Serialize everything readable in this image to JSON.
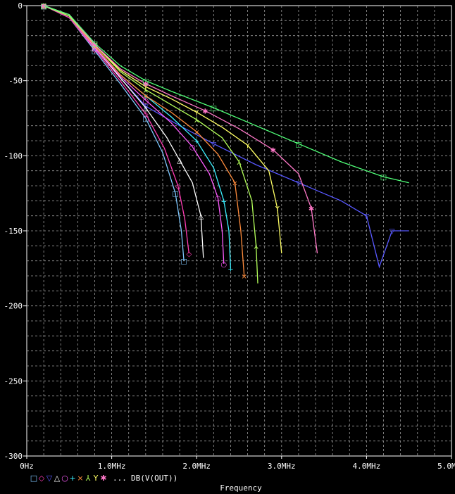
{
  "chart_data": {
    "type": "line",
    "xlabel": "Frequency",
    "x_unit": "Hz",
    "xlim": [
      0,
      5000000
    ],
    "ylim": [
      -300,
      0
    ],
    "x_ticks": [
      {
        "value": 0,
        "label": "0Hz"
      },
      {
        "value": 1000000,
        "label": "1.0MHz"
      },
      {
        "value": 2000000,
        "label": "2.0MHz"
      },
      {
        "value": 3000000,
        "label": "3.0MHz"
      },
      {
        "value": 4000000,
        "label": "4.0MHz"
      },
      {
        "value": 5000000,
        "label": "5.0MHz"
      }
    ],
    "y_ticks": [
      {
        "value": 0,
        "label": "0"
      },
      {
        "value": -50,
        "label": "-50"
      },
      {
        "value": -100,
        "label": "-100"
      },
      {
        "value": -150,
        "label": "-150"
      },
      {
        "value": -200,
        "label": "-200"
      },
      {
        "value": -250,
        "label": "-250"
      },
      {
        "value": -300,
        "label": "-300"
      }
    ],
    "grid": true,
    "legend_position": "bottom-left",
    "legend_ellipsis": "...",
    "legend_label": "DB(V(OUT))",
    "series": [
      {
        "marker": "□",
        "color": "#7fc8ff",
        "points": [
          [
            200000,
            0
          ],
          [
            500000,
            -8
          ],
          [
            800000,
            -30
          ],
          [
            1100000,
            -52
          ],
          [
            1400000,
            -75
          ],
          [
            1600000,
            -98
          ],
          [
            1750000,
            -125
          ],
          [
            1820000,
            -150
          ],
          [
            1850000,
            -170
          ]
        ]
      },
      {
        "marker": "◇",
        "color": "#ff3cb4",
        "points": [
          [
            200000,
            0
          ],
          [
            500000,
            -8
          ],
          [
            800000,
            -29
          ],
          [
            1100000,
            -50
          ],
          [
            1400000,
            -72
          ],
          [
            1620000,
            -95
          ],
          [
            1780000,
            -120
          ],
          [
            1860000,
            -142
          ],
          [
            1910000,
            -165
          ]
        ]
      },
      {
        "marker": "▽",
        "color": "#5858ff",
        "points": [
          [
            200000,
            0
          ],
          [
            500000,
            -7
          ],
          [
            800000,
            -28
          ],
          [
            1100000,
            -48
          ],
          [
            1400000,
            -67
          ],
          [
            1800000,
            -80
          ],
          [
            2200000,
            -92
          ],
          [
            2700000,
            -106
          ],
          [
            3200000,
            -118
          ],
          [
            3700000,
            -130
          ],
          [
            4000000,
            -140
          ],
          [
            4150000,
            -174
          ],
          [
            4300000,
            -150
          ],
          [
            4500000,
            -150
          ]
        ]
      },
      {
        "marker": "△",
        "color": "#ffffff",
        "points": [
          [
            200000,
            0
          ],
          [
            500000,
            -7
          ],
          [
            800000,
            -28
          ],
          [
            1100000,
            -48
          ],
          [
            1400000,
            -68
          ],
          [
            1650000,
            -88
          ],
          [
            1800000,
            -103
          ],
          [
            1950000,
            -118
          ],
          [
            2050000,
            -140
          ],
          [
            2080000,
            -168
          ]
        ]
      },
      {
        "marker": "○",
        "color": "#ff5cff",
        "points": [
          [
            200000,
            0
          ],
          [
            500000,
            -7
          ],
          [
            800000,
            -28
          ],
          [
            1100000,
            -47
          ],
          [
            1400000,
            -63
          ],
          [
            1700000,
            -78
          ],
          [
            1950000,
            -94
          ],
          [
            2150000,
            -112
          ],
          [
            2250000,
            -128
          ],
          [
            2300000,
            -150
          ],
          [
            2320000,
            -172
          ]
        ]
      },
      {
        "marker": "+",
        "color": "#3cf0ff",
        "points": [
          [
            200000,
            0
          ],
          [
            500000,
            -7
          ],
          [
            800000,
            -27
          ],
          [
            1100000,
            -46
          ],
          [
            1400000,
            -60
          ],
          [
            1700000,
            -74
          ],
          [
            2000000,
            -90
          ],
          [
            2200000,
            -108
          ],
          [
            2320000,
            -130
          ],
          [
            2380000,
            -150
          ],
          [
            2400000,
            -175
          ]
        ]
      },
      {
        "marker": "×",
        "color": "#ff8c3c",
        "points": [
          [
            200000,
            0
          ],
          [
            500000,
            -7
          ],
          [
            800000,
            -27
          ],
          [
            1100000,
            -46
          ],
          [
            1400000,
            -60
          ],
          [
            1700000,
            -71
          ],
          [
            2000000,
            -84
          ],
          [
            2250000,
            -99
          ],
          [
            2450000,
            -118
          ],
          [
            2520000,
            -150
          ],
          [
            2560000,
            -180
          ]
        ]
      },
      {
        "marker": "⅄",
        "color": "#b4ff5a",
        "points": [
          [
            200000,
            0
          ],
          [
            500000,
            -7
          ],
          [
            800000,
            -26
          ],
          [
            1100000,
            -44
          ],
          [
            1400000,
            -56
          ],
          [
            1700000,
            -66
          ],
          [
            2000000,
            -76
          ],
          [
            2300000,
            -88
          ],
          [
            2500000,
            -104
          ],
          [
            2650000,
            -130
          ],
          [
            2700000,
            -160
          ],
          [
            2720000,
            -185
          ]
        ]
      },
      {
        "marker": "Y",
        "color": "#ffff64",
        "points": [
          [
            200000,
            0
          ],
          [
            500000,
            -6
          ],
          [
            800000,
            -26
          ],
          [
            1100000,
            -43
          ],
          [
            1400000,
            -54
          ],
          [
            1700000,
            -62
          ],
          [
            2000000,
            -71
          ],
          [
            2300000,
            -81
          ],
          [
            2600000,
            -93
          ],
          [
            2850000,
            -110
          ],
          [
            2950000,
            -135
          ],
          [
            3000000,
            -165
          ]
        ]
      },
      {
        "marker": "✱",
        "color": "#ff78c8",
        "points": [
          [
            200000,
            0
          ],
          [
            500000,
            -6
          ],
          [
            800000,
            -26
          ],
          [
            1100000,
            -42
          ],
          [
            1400000,
            -52
          ],
          [
            1700000,
            -60
          ],
          [
            2100000,
            -70
          ],
          [
            2500000,
            -82
          ],
          [
            2900000,
            -96
          ],
          [
            3200000,
            -112
          ],
          [
            3350000,
            -135
          ],
          [
            3420000,
            -165
          ]
        ]
      },
      {
        "marker": "□",
        "color": "#50ff78",
        "points": [
          [
            200000,
            0
          ],
          [
            500000,
            -6
          ],
          [
            800000,
            -25
          ],
          [
            1100000,
            -40
          ],
          [
            1400000,
            -50
          ],
          [
            1700000,
            -57
          ],
          [
            2200000,
            -68
          ],
          [
            2700000,
            -80
          ],
          [
            3200000,
            -92
          ],
          [
            3700000,
            -104
          ],
          [
            4200000,
            -114
          ],
          [
            4500000,
            -118
          ]
        ]
      }
    ]
  }
}
